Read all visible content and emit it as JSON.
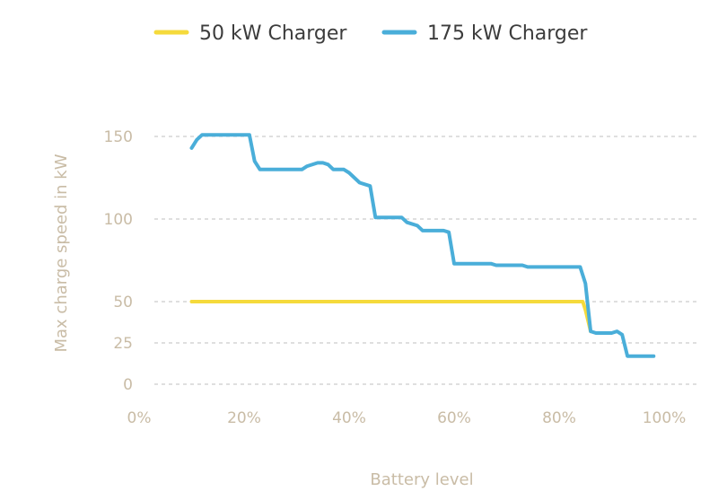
{
  "chart_data": {
    "type": "line",
    "xlabel": "Battery level",
    "ylabel": "Max charge speed in kW",
    "xlim": [
      0,
      100
    ],
    "ylim": [
      0,
      150
    ],
    "x_ticks": [
      {
        "value": 0,
        "label": "0%"
      },
      {
        "value": 20,
        "label": "20%"
      },
      {
        "value": 40,
        "label": "40%"
      },
      {
        "value": 60,
        "label": "60%"
      },
      {
        "value": 80,
        "label": "80%"
      },
      {
        "value": 100,
        "label": "100%"
      }
    ],
    "y_ticks": [
      {
        "value": 0,
        "label": "0"
      },
      {
        "value": 25,
        "label": "25"
      },
      {
        "value": 50,
        "label": "50"
      },
      {
        "value": 100,
        "label": "100"
      },
      {
        "value": 150,
        "label": "150"
      }
    ],
    "grid": "horizontal-dashed",
    "legend_position": "top-center",
    "series": [
      {
        "name": "50 kW Charger",
        "color": "#f5da3c",
        "points": [
          [
            10,
            50
          ],
          [
            84.5,
            50
          ],
          [
            85,
            45
          ],
          [
            86,
            32
          ]
        ]
      },
      {
        "name": "175 kW Charger",
        "color": "#4aaed9",
        "points": [
          [
            10,
            143
          ],
          [
            11,
            148
          ],
          [
            12,
            151
          ],
          [
            21,
            151
          ],
          [
            22,
            135
          ],
          [
            23,
            130
          ],
          [
            31,
            130
          ],
          [
            32,
            132
          ],
          [
            34,
            134
          ],
          [
            35,
            134
          ],
          [
            36,
            133
          ],
          [
            37,
            130
          ],
          [
            39,
            130
          ],
          [
            40,
            128
          ],
          [
            42,
            122
          ],
          [
            44,
            120
          ],
          [
            45,
            101
          ],
          [
            50,
            101
          ],
          [
            51,
            98
          ],
          [
            53,
            96
          ],
          [
            54,
            93
          ],
          [
            58,
            93
          ],
          [
            59,
            92
          ],
          [
            60,
            73
          ],
          [
            67,
            73
          ],
          [
            68,
            72
          ],
          [
            73,
            72
          ],
          [
            74,
            71
          ],
          [
            84,
            71
          ],
          [
            85,
            61
          ],
          [
            86,
            32
          ],
          [
            87,
            31
          ],
          [
            90,
            31
          ],
          [
            91,
            32
          ],
          [
            92,
            30
          ],
          [
            93,
            17
          ],
          [
            98,
            17
          ]
        ]
      }
    ]
  }
}
